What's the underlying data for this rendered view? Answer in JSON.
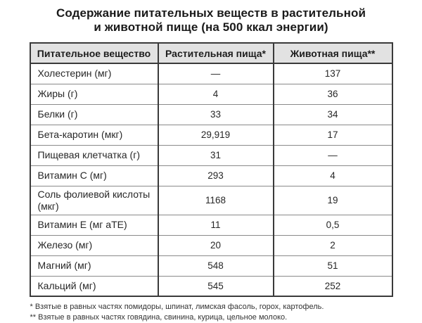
{
  "title": {
    "line1": "Содержание питательных веществ в растительной",
    "line2": "и животной пище (на 500 ккал энергии)"
  },
  "table": {
    "headers": [
      "Питательное вещество",
      "Растительная пища*",
      "Животная пища**"
    ],
    "rows": [
      {
        "nutrient": "Холестерин (мг)",
        "plant": "—",
        "animal": "137"
      },
      {
        "nutrient": "Жиры (г)",
        "plant": "4",
        "animal": "36"
      },
      {
        "nutrient": "Белки (г)",
        "plant": "33",
        "animal": "34"
      },
      {
        "nutrient": "Бета-каротин (мкг)",
        "plant": "29,919",
        "animal": "17"
      },
      {
        "nutrient": "Пищевая клетчатка (г)",
        "plant": "31",
        "animal": "—"
      },
      {
        "nutrient": "Витамин С (мг)",
        "plant": "293",
        "animal": "4"
      },
      {
        "nutrient": "Соль фолиевой кислоты (мкг)",
        "plant": "1168",
        "animal": "19"
      },
      {
        "nutrient": "Витамин Е (мг аТЕ)",
        "plant": "11",
        "animal": "0,5"
      },
      {
        "nutrient": "Железо (мг)",
        "plant": "20",
        "animal": "2"
      },
      {
        "nutrient": "Магний (мг)",
        "plant": "548",
        "animal": "51"
      },
      {
        "nutrient": "Кальций (мг)",
        "plant": "545",
        "animal": "252"
      }
    ]
  },
  "footnotes": [
    "* Взятые в равных частях помидоры, шпинат, лимская фасоль, горох, картофель.",
    "** Взятые в равных частях говядина, свинина, курица, цельное молоко."
  ],
  "colors": {
    "header_background": "#e2e2e2",
    "border_dark": "#3a3a3a",
    "border_light": "#8a8a8a",
    "text": "#222222",
    "background": "#ffffff"
  },
  "chart_data": {
    "type": "table",
    "title": "Содержание питательных веществ в растительной и животной пище (на 500 ккал энергии)",
    "columns": [
      "Питательное вещество",
      "Растительная пища*",
      "Животная пища**"
    ],
    "rows": [
      [
        "Холестерин (мг)",
        "—",
        "137"
      ],
      [
        "Жиры (г)",
        "4",
        "36"
      ],
      [
        "Белки (г)",
        "33",
        "34"
      ],
      [
        "Бета-каротин (мкг)",
        "29,919",
        "17"
      ],
      [
        "Пищевая клетчатка (г)",
        "31",
        "—"
      ],
      [
        "Витамин С (мг)",
        "293",
        "4"
      ],
      [
        "Соль фолиевой кислоты (мкг)",
        "1168",
        "19"
      ],
      [
        "Витамин Е (мг аТЕ)",
        "11",
        "0,5"
      ],
      [
        "Железо (мг)",
        "20",
        "2"
      ],
      [
        "Магний (мг)",
        "548",
        "51"
      ],
      [
        "Кальций (мг)",
        "545",
        "252"
      ]
    ],
    "footnotes": [
      "* Взятые в равных частях помидоры, шпинат, лимская фасоль, горох, картофель.",
      "** Взятые в равных частях говядина, свинина, курица, цельное молоко."
    ],
    "legend_position": "none",
    "grid": true
  }
}
